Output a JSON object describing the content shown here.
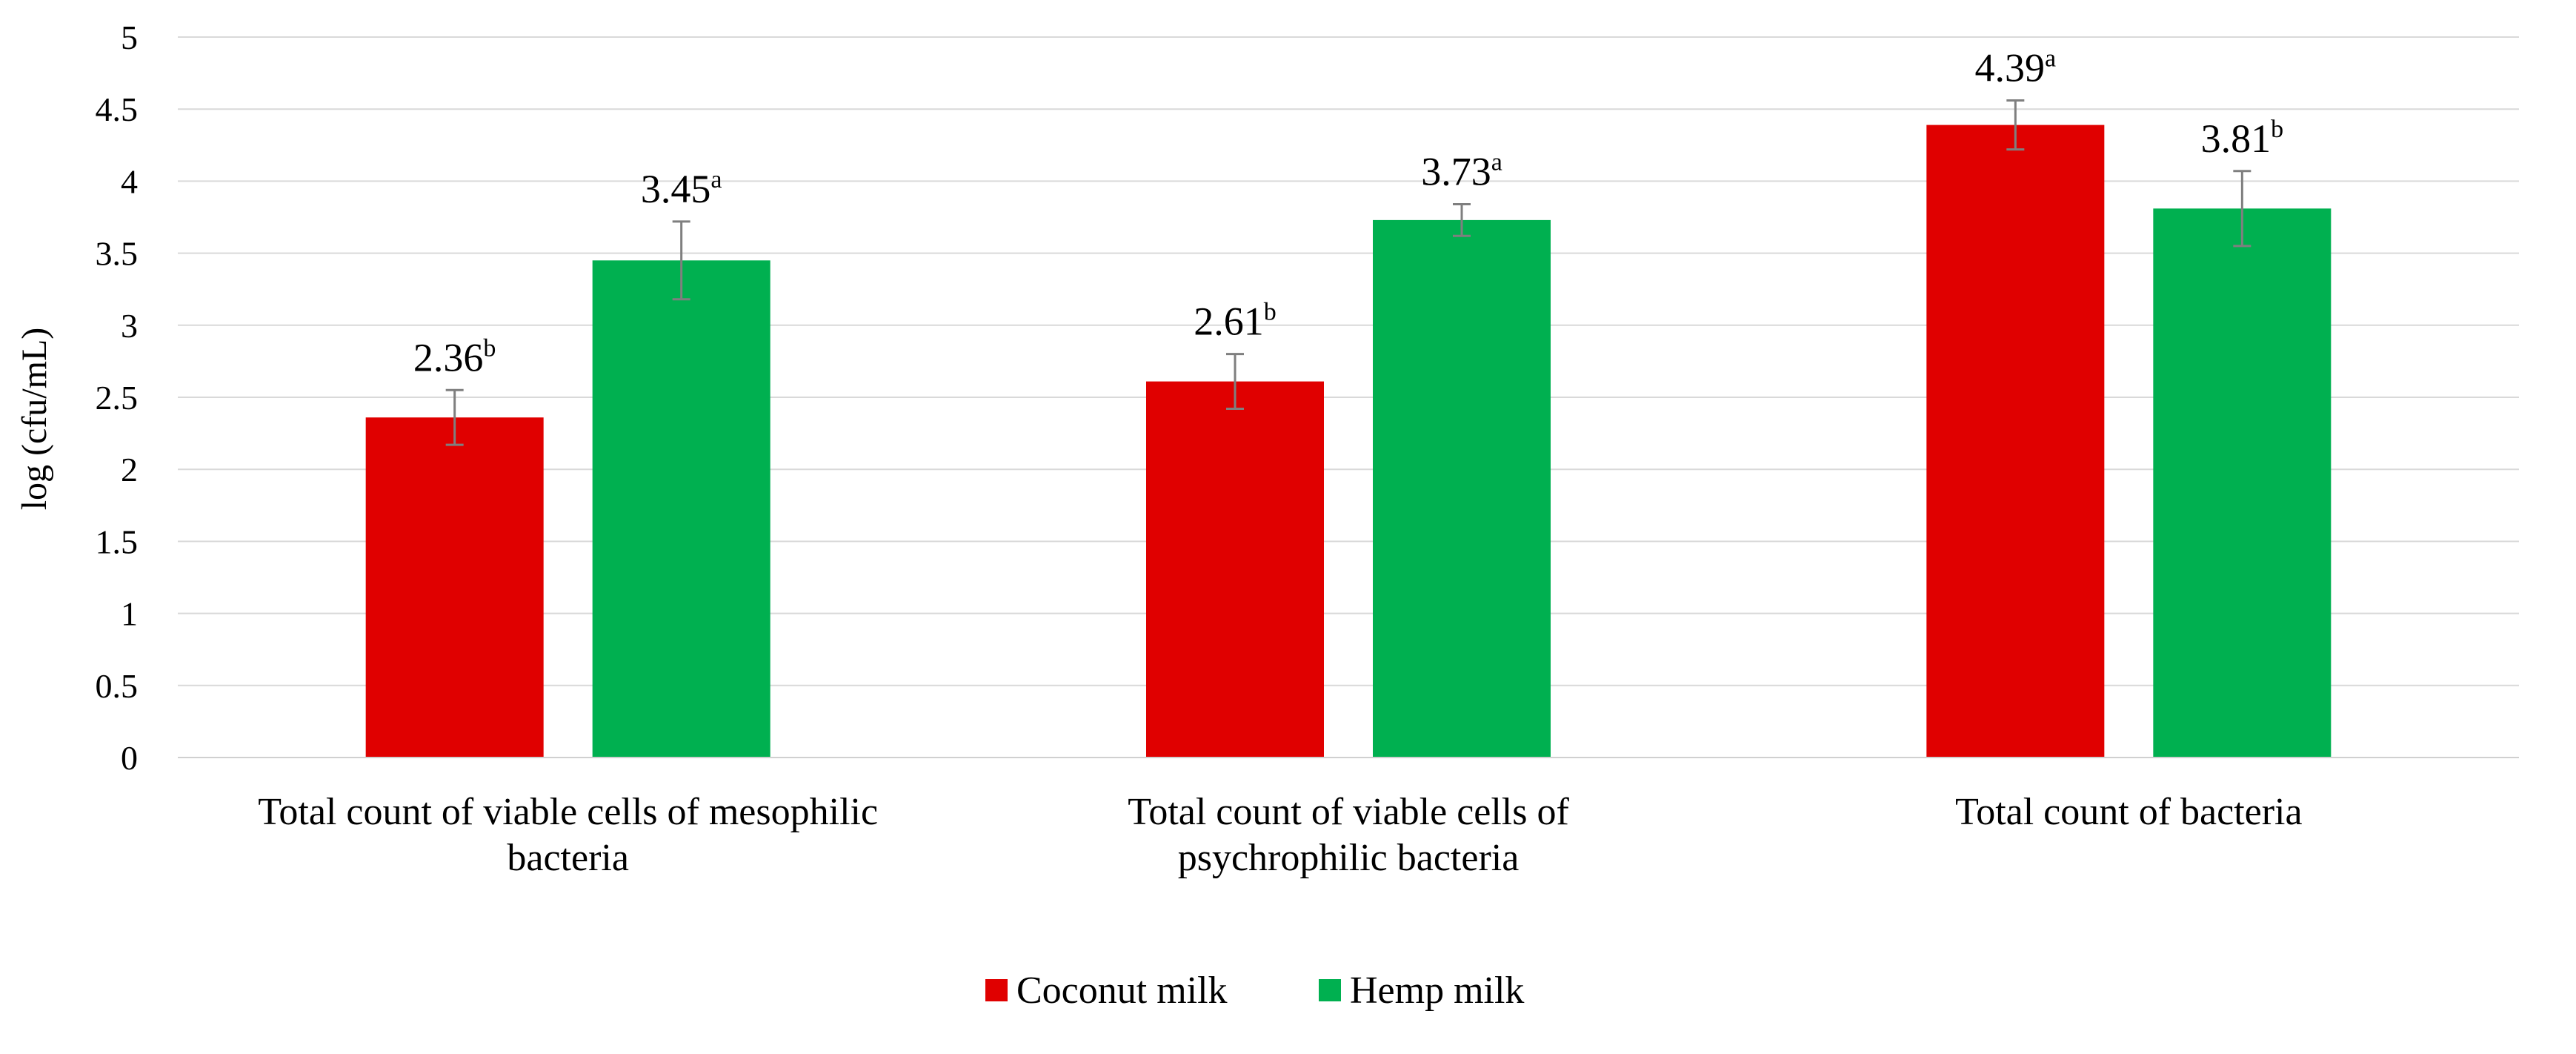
{
  "chart_data": {
    "type": "bar",
    "title": "",
    "xlabel": "",
    "ylabel": "log (cfu/mL)",
    "ylim": [
      0,
      5
    ],
    "ytick_step": 0.5,
    "yticks": [
      "0",
      "0.5",
      "1",
      "1.5",
      "2",
      "2.5",
      "3",
      "3.5",
      "4",
      "4.5",
      "5"
    ],
    "grid": true,
    "legend_position": "bottom-center",
    "categories": [
      [
        "Total count of viable cells of mesophilic",
        "bacteria"
      ],
      [
        "Total count of viable cells of",
        "psychrophilic bacteria"
      ],
      [
        "Total count of bacteria"
      ]
    ],
    "series": [
      {
        "name": "Coconut milk",
        "color": "#E00000",
        "values": [
          2.36,
          2.61,
          4.39
        ],
        "errors": [
          0.19,
          0.19,
          0.17
        ],
        "labels": [
          "2.36",
          "2.61",
          "4.39"
        ],
        "letters": [
          "b",
          "b",
          "a"
        ]
      },
      {
        "name": "Hemp milk",
        "color": "#00B050",
        "values": [
          3.45,
          3.73,
          3.81
        ],
        "errors": [
          0.27,
          0.11,
          0.26
        ],
        "labels": [
          "3.45",
          "3.73",
          "3.81"
        ],
        "letters": [
          "a",
          "a",
          "b"
        ]
      }
    ]
  }
}
